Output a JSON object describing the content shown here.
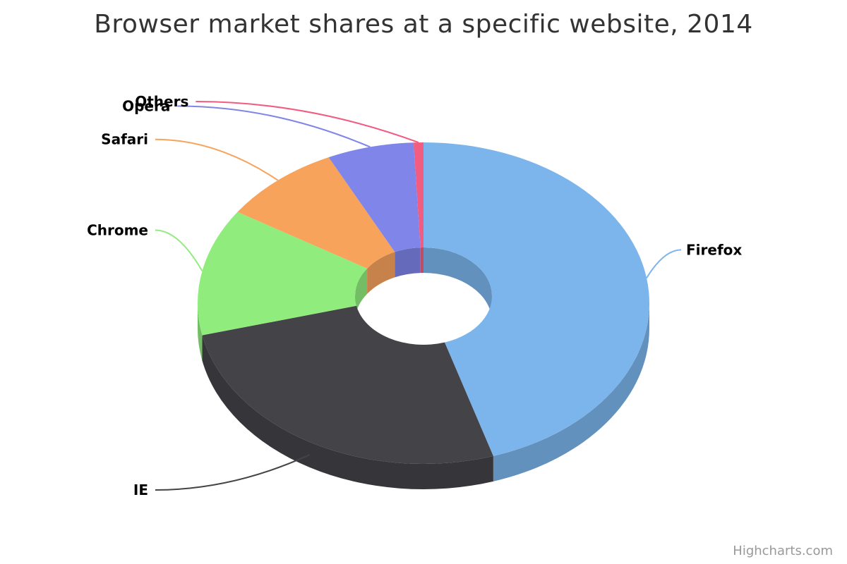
{
  "chart_data": {
    "type": "pie",
    "variant": "3d-donut",
    "title": "Browser market shares at a specific website, 2014",
    "series": [
      {
        "slices": [
          {
            "name": "Firefox",
            "value": 45.0,
            "color": "#7cb5ec"
          },
          {
            "name": "IE",
            "value": 26.8,
            "color": "#434348"
          },
          {
            "name": "Chrome",
            "value": 12.8,
            "color": "#90ed7d"
          },
          {
            "name": "Safari",
            "value": 8.5,
            "color": "#f7a35c"
          },
          {
            "name": "Opera",
            "value": 6.2,
            "color": "#8085e9"
          },
          {
            "name": "Others",
            "value": 0.7,
            "color": "#f15c80"
          }
        ]
      }
    ]
  },
  "credits": "Highcharts.com"
}
